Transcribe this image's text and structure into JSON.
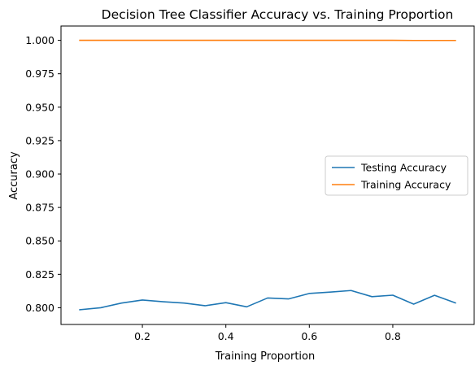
{
  "chart_data": {
    "type": "line",
    "title": "Decision Tree Classifier Accuracy vs. Training Proportion",
    "xlabel": "Training Proportion",
    "ylabel": "Accuracy",
    "xlim": [
      0.005,
      0.995
    ],
    "ylim": [
      0.7875,
      1.0107
    ],
    "xticks": [
      0.2,
      0.4,
      0.6,
      0.8
    ],
    "xtick_labels": [
      "0.2",
      "0.4",
      "0.6",
      "0.8"
    ],
    "yticks": [
      0.8,
      0.825,
      0.85,
      0.875,
      0.9,
      0.925,
      0.95,
      0.975,
      1.0
    ],
    "ytick_labels": [
      "0.800",
      "0.825",
      "0.850",
      "0.875",
      "0.900",
      "0.925",
      "0.950",
      "0.975",
      "1.000"
    ],
    "grid": false,
    "legend_position": "center-right",
    "x": [
      0.05,
      0.1,
      0.15,
      0.2,
      0.25,
      0.3,
      0.35,
      0.4,
      0.45,
      0.5,
      0.55,
      0.6,
      0.65,
      0.7,
      0.75,
      0.8,
      0.85,
      0.9,
      0.95
    ],
    "series": [
      {
        "name": "Testing Accuracy",
        "color": "#1f77b4",
        "values": [
          0.7985,
          0.8,
          0.8035,
          0.8058,
          0.8045,
          0.8035,
          0.8015,
          0.8038,
          0.8007,
          0.8073,
          0.8066,
          0.8107,
          0.8117,
          0.8129,
          0.8083,
          0.8094,
          0.8027,
          0.8093,
          0.8036
        ]
      },
      {
        "name": "Training Accuracy",
        "color": "#ff7f0e",
        "values": [
          1.0,
          1.0,
          1.0,
          1.0,
          1.0,
          1.0,
          1.0,
          1.0,
          1.0,
          1.0,
          1.0,
          1.0,
          1.0,
          1.0,
          1.0,
          1.0,
          0.9999,
          0.9999,
          0.9999
        ]
      }
    ]
  }
}
